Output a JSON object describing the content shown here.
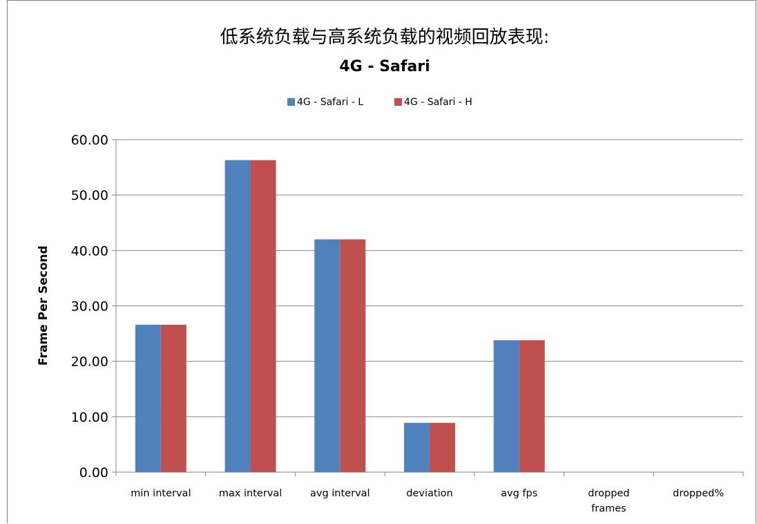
{
  "chart_data": {
    "type": "bar",
    "title": "低系统负载与高系统负载的视频回放表现:",
    "subtitle": "4G - Safari",
    "ylabel": "Frame Per Second",
    "xlabel": "",
    "ylim": [
      0,
      60
    ],
    "yticks": [
      "0.00",
      "10.00",
      "20.00",
      "30.00",
      "40.00",
      "50.00",
      "60.00"
    ],
    "ytick_values": [
      0,
      10,
      20,
      30,
      40,
      50,
      60
    ],
    "grid": true,
    "legend_position": "top",
    "categories": [
      "min interval",
      "max interval",
      "avg interval",
      "deviation",
      "avg fps",
      "dropped frames",
      "dropped%"
    ],
    "series": [
      {
        "name": "4G - Safari - L",
        "color": "#4f81bd",
        "values": [
          26.6,
          56.3,
          42.0,
          8.9,
          23.8,
          0,
          0
        ]
      },
      {
        "name": "4G - Safari - H",
        "color": "#c0504d",
        "values": [
          26.6,
          56.3,
          42.0,
          8.9,
          23.8,
          0,
          0
        ]
      }
    ]
  }
}
